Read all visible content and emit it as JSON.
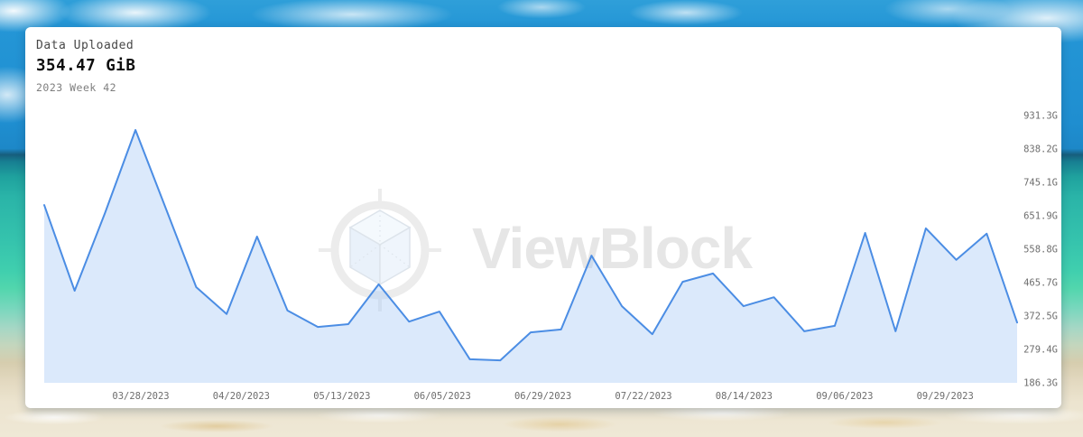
{
  "header": {
    "title": "Data Uploaded",
    "value": "354.47 GiB",
    "subtitle": "2023 Week 42"
  },
  "watermark": {
    "text": "ViewBlock"
  },
  "colors": {
    "line": "#4b8de4",
    "area_fill": "rgba(169,203,245,0.42)",
    "axis_label": "#6d6d6d",
    "watermark_gray": "#ececec",
    "cube_edge": "#dde4eb",
    "cube_face_top": "#f4f9fd",
    "cube_face_left": "#e9f1fa",
    "cube_face_right": "#eff5fc"
  },
  "chart_data": {
    "type": "area",
    "title": "Data Uploaded",
    "unit": "GiB",
    "grid": false,
    "legend": false,
    "y_axis_position": "right",
    "ylim": [
      186.3,
      931.3
    ],
    "y_ticks": [
      186.3,
      279.4,
      372.5,
      465.7,
      558.8,
      651.9,
      745.1,
      838.2,
      931.3
    ],
    "y_tick_labels": [
      "186.3G",
      "279.4G",
      "372.5G",
      "465.7G",
      "558.8G",
      "651.9G",
      "745.1G",
      "838.2G",
      "931.3G"
    ],
    "x_tick_labels": [
      "03/28/2023",
      "04/20/2023",
      "05/13/2023",
      "06/05/2023",
      "06/29/2023",
      "07/22/2023",
      "08/14/2023",
      "09/06/2023",
      "09/29/2023"
    ],
    "x": [
      "2023-W10",
      "2023-W11",
      "2023-W12",
      "2023-W13",
      "2023-W14",
      "2023-W15",
      "2023-W16",
      "2023-W17",
      "2023-W18",
      "2023-W19",
      "2023-W20",
      "2023-W21",
      "2023-W22",
      "2023-W23",
      "2023-W24",
      "2023-W25",
      "2023-W26",
      "2023-W27",
      "2023-W28",
      "2023-W29",
      "2023-W30",
      "2023-W31",
      "2023-W32",
      "2023-W33",
      "2023-W34",
      "2023-W35",
      "2023-W36",
      "2023-W37",
      "2023-W38",
      "2023-W39",
      "2023-W40",
      "2023-W41",
      "2023-W42"
    ],
    "values": [
      682,
      443,
      660,
      891,
      672,
      453,
      378,
      594,
      388,
      342,
      350,
      461,
      357,
      385,
      252,
      249,
      327,
      335,
      541,
      400,
      322,
      468,
      491,
      400,
      425,
      330,
      345,
      604,
      330,
      617,
      529,
      602,
      354.47
    ]
  }
}
